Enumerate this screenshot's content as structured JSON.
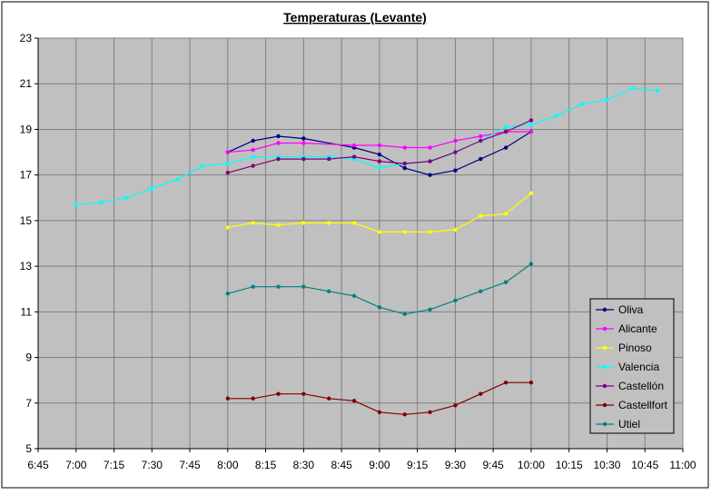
{
  "chart_data": {
    "type": "line",
    "title": "Temperaturas (Levante)",
    "xlabel": "",
    "ylabel": "",
    "x_ticks": [
      "6:45",
      "7:00",
      "7:15",
      "7:30",
      "7:45",
      "8:00",
      "8:15",
      "8:30",
      "8:45",
      "9:00",
      "9:15",
      "9:30",
      "9:45",
      "10:00",
      "10:15",
      "10:30",
      "10:45",
      "11:00"
    ],
    "y_ticks": [
      5,
      7,
      9,
      11,
      13,
      15,
      17,
      19,
      21,
      23
    ],
    "ylim": [
      5,
      23
    ],
    "xlim": [
      "6:45",
      "11:00"
    ],
    "grid": true,
    "legend_position": "right",
    "series": [
      {
        "name": "Oliva",
        "color": "#000080",
        "points": [
          [
            "8:00",
            18.0
          ],
          [
            "8:10",
            18.5
          ],
          [
            "8:20",
            18.7
          ],
          [
            "8:30",
            18.6
          ],
          [
            "8:50",
            18.2
          ],
          [
            "9:00",
            17.9
          ],
          [
            "9:10",
            17.3
          ],
          [
            "9:20",
            17.0
          ],
          [
            "9:30",
            17.2
          ],
          [
            "9:40",
            17.7
          ],
          [
            "9:50",
            18.2
          ],
          [
            "10:00",
            18.9
          ]
        ]
      },
      {
        "name": "Alicante",
        "color": "#ff00ff",
        "points": [
          [
            "8:00",
            18.0
          ],
          [
            "8:10",
            18.1
          ],
          [
            "8:20",
            18.4
          ],
          [
            "8:30",
            18.4
          ],
          [
            "8:50",
            18.3
          ],
          [
            "9:00",
            18.3
          ],
          [
            "9:10",
            18.2
          ],
          [
            "9:20",
            18.2
          ],
          [
            "9:30",
            18.5
          ],
          [
            "9:40",
            18.7
          ],
          [
            "9:50",
            18.9
          ],
          [
            "10:00",
            18.9
          ]
        ]
      },
      {
        "name": "Pinoso",
        "color": "#ffff00",
        "points": [
          [
            "8:00",
            14.7
          ],
          [
            "8:10",
            14.9
          ],
          [
            "8:20",
            14.8
          ],
          [
            "8:30",
            14.9
          ],
          [
            "8:40",
            14.9
          ],
          [
            "8:50",
            14.9
          ],
          [
            "9:00",
            14.5
          ],
          [
            "9:10",
            14.5
          ],
          [
            "9:20",
            14.5
          ],
          [
            "9:30",
            14.6
          ],
          [
            "9:40",
            15.2
          ],
          [
            "9:50",
            15.3
          ],
          [
            "10:00",
            16.2
          ]
        ]
      },
      {
        "name": "Valencia",
        "color": "#00ffff",
        "points": [
          [
            "7:00",
            15.7
          ],
          [
            "7:10",
            15.8
          ],
          [
            "7:20",
            16.0
          ],
          [
            "7:30",
            16.4
          ],
          [
            "7:40",
            16.8
          ],
          [
            "7:50",
            17.4
          ],
          [
            "8:00",
            17.5
          ],
          [
            "8:10",
            17.8
          ],
          [
            "8:20",
            17.8
          ],
          [
            "8:30",
            17.8
          ],
          [
            "8:40",
            17.8
          ],
          [
            "8:50",
            17.7
          ],
          [
            "9:00",
            17.3
          ],
          [
            "9:10",
            17.5
          ],
          [
            "9:20",
            17.6
          ],
          [
            "9:30",
            18.0
          ],
          [
            "9:40",
            18.5
          ],
          [
            "9:50",
            19.1
          ],
          [
            "10:00",
            19.2
          ],
          [
            "10:10",
            19.6
          ],
          [
            "10:20",
            20.1
          ],
          [
            "10:30",
            20.3
          ],
          [
            "10:40",
            20.8
          ],
          [
            "10:50",
            20.7
          ]
        ]
      },
      {
        "name": "Castellón",
        "color": "#800080",
        "points": [
          [
            "8:00",
            17.1
          ],
          [
            "8:10",
            17.4
          ],
          [
            "8:20",
            17.7
          ],
          [
            "8:30",
            17.7
          ],
          [
            "8:40",
            17.7
          ],
          [
            "8:50",
            17.8
          ],
          [
            "9:00",
            17.6
          ],
          [
            "9:10",
            17.5
          ],
          [
            "9:20",
            17.6
          ],
          [
            "9:30",
            18.0
          ],
          [
            "9:40",
            18.5
          ],
          [
            "9:50",
            18.9
          ],
          [
            "10:00",
            19.4
          ]
        ]
      },
      {
        "name": "Castellfort",
        "color": "#800000",
        "points": [
          [
            "8:00",
            7.2
          ],
          [
            "8:10",
            7.2
          ],
          [
            "8:20",
            7.4
          ],
          [
            "8:30",
            7.4
          ],
          [
            "8:40",
            7.2
          ],
          [
            "8:50",
            7.1
          ],
          [
            "9:00",
            6.6
          ],
          [
            "9:10",
            6.5
          ],
          [
            "9:20",
            6.6
          ],
          [
            "9:30",
            6.9
          ],
          [
            "9:40",
            7.4
          ],
          [
            "9:50",
            7.9
          ],
          [
            "10:00",
            7.9
          ]
        ]
      },
      {
        "name": "Utiel",
        "color": "#008080",
        "points": [
          [
            "8:00",
            11.8
          ],
          [
            "8:10",
            12.1
          ],
          [
            "8:20",
            12.1
          ],
          [
            "8:30",
            12.1
          ],
          [
            "8:40",
            11.9
          ],
          [
            "8:50",
            11.7
          ],
          [
            "9:00",
            11.2
          ],
          [
            "9:10",
            10.9
          ],
          [
            "9:20",
            11.1
          ],
          [
            "9:30",
            11.5
          ],
          [
            "9:40",
            11.9
          ],
          [
            "9:50",
            12.3
          ],
          [
            "10:00",
            13.1
          ]
        ]
      }
    ]
  }
}
